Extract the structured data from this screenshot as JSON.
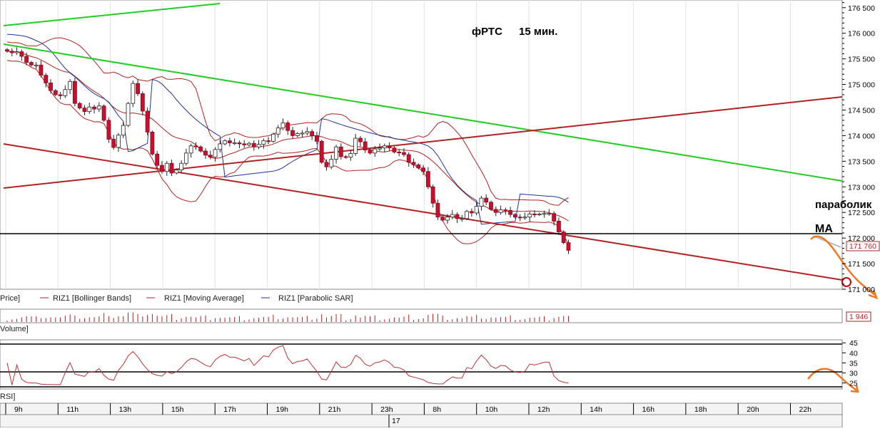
{
  "chart_data": [
    {
      "type": "candlestick",
      "title": "фРТС",
      "subtitle": "15 мин.",
      "y_ticks": [
        "176 500",
        "176 000",
        "175 500",
        "175 000",
        "174 500",
        "174 000",
        "173 500",
        "173 000",
        "172 500",
        "172 000",
        "171 500",
        "171 000"
      ],
      "ylim": [
        171000,
        176650
      ],
      "last_price_label": "171 760",
      "horizontal_line": 172000,
      "annotations": [
        "параболик",
        "MA"
      ],
      "legend": [
        "Price]",
        "RIZ1 [Bollinger Bands]",
        "RIZ1 [Moving Average]",
        "RIZ1 [Parabolic SAR]"
      ],
      "x_labels": [
        "9h",
        "11h",
        "13h",
        "15h",
        "17h",
        "19h",
        "21h",
        "23h",
        "8h",
        "10h",
        "12h",
        "14h",
        "16h",
        "18h",
        "20h",
        "22h"
      ],
      "date_label": "17",
      "close": [
        175650,
        175620,
        175640,
        175550,
        175430,
        175380,
        175380,
        175180,
        175030,
        174880,
        174800,
        174780,
        174900,
        175060,
        174630,
        174540,
        174470,
        174560,
        174520,
        174580,
        174300,
        173930,
        173770,
        174010,
        174200,
        174630,
        175020,
        174820,
        174480,
        174070,
        173640,
        173420,
        173300,
        173460,
        173270,
        173330,
        173460,
        173660,
        173800,
        173780,
        173700,
        173620,
        173580,
        173730,
        173840,
        173900,
        173860,
        173860,
        173840,
        173820,
        173850,
        173780,
        173830,
        173900,
        173890,
        174030,
        174150,
        174250,
        174100,
        174000,
        174040,
        174050,
        174080,
        174000,
        173890,
        173480,
        173390,
        173540,
        173780,
        173590,
        173580,
        173650,
        173950,
        173880,
        173720,
        173660,
        173740,
        173760,
        173800,
        173760,
        173680,
        173670,
        173630,
        173480,
        173430,
        173370,
        173300,
        173000,
        172680,
        172410,
        172350,
        172410,
        172460,
        172380,
        172380,
        172520,
        172490,
        172620,
        172780,
        172700,
        172560,
        172500,
        172550,
        172540,
        172460,
        172410,
        172400,
        172410,
        172470,
        172460,
        172470,
        172480,
        172480,
        172330,
        172120,
        171910,
        171760
      ]
    },
    {
      "type": "bar",
      "legend": "Volume]",
      "last_value_label": "1 946"
    },
    {
      "type": "line",
      "legend": "RSI]",
      "y_ticks": [
        "45",
        "40",
        "35",
        "30",
        "25"
      ],
      "ylim": [
        22,
        46.5
      ]
    }
  ]
}
